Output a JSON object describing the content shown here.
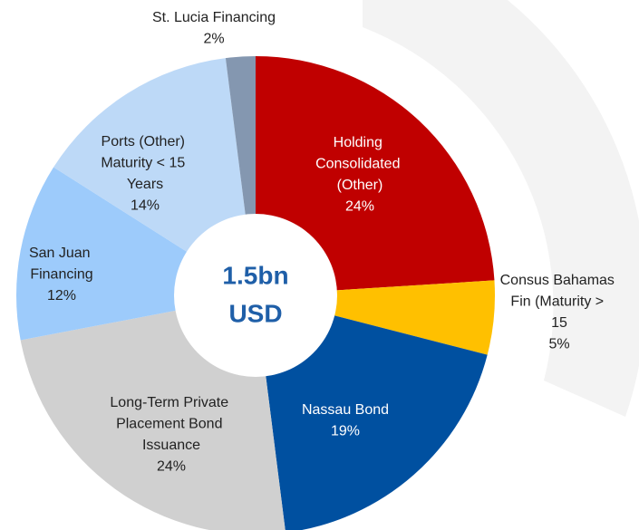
{
  "chart_data": {
    "type": "donut",
    "categories": [
      "Holding Consolidated (Other)",
      "Consus Bahamas Fin (Maturity > 15 Years)",
      "Nassau Bond",
      "Long-Term Private Placement Bond Issuance",
      "San Juan Financing",
      "Ports (Other) Maturity < 15 Years",
      "St. Lucia Financing"
    ],
    "values": [
      24,
      5,
      19,
      24,
      12,
      14,
      2
    ],
    "value_labels": [
      "24%",
      "5%",
      "19%",
      "24%",
      "12%",
      "14%",
      "2%"
    ],
    "colors": [
      "#c00000",
      "#ffc000",
      "#0050a0",
      "#d0d0d0",
      "#9dcbfb",
      "#bdd9f7",
      "#8497b0"
    ],
    "annotations": [
      "1.5bn",
      "USD"
    ]
  }
}
